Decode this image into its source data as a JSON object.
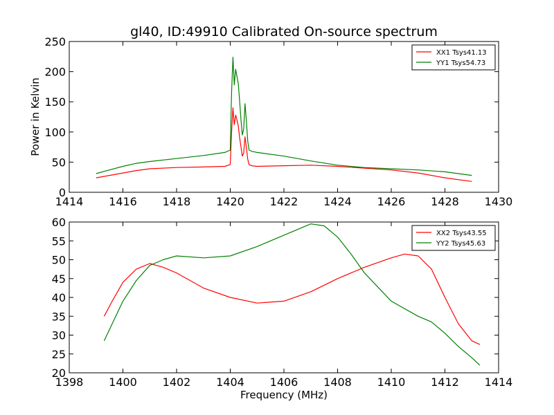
{
  "chart_data": [
    {
      "type": "line",
      "title": "gl40, ID:49910 Calibrated On-source spectrum",
      "xlabel": "",
      "ylabel": "Power in Kelvin",
      "xlim": [
        1414,
        1430
      ],
      "ylim": [
        0,
        250
      ],
      "xticks": [
        1414,
        1416,
        1418,
        1420,
        1422,
        1424,
        1426,
        1428,
        1430
      ],
      "yticks": [
        0,
        50,
        100,
        150,
        200,
        250
      ],
      "legend_position": "top-right",
      "series": [
        {
          "name": "XX1 Tsys41.13",
          "color": "#ff0000",
          "x": [
            1415.0,
            1415.5,
            1416.0,
            1416.5,
            1417.0,
            1418.0,
            1419.0,
            1419.8,
            1420.0,
            1420.05,
            1420.1,
            1420.15,
            1420.2,
            1420.25,
            1420.3,
            1420.35,
            1420.4,
            1420.45,
            1420.5,
            1420.55,
            1420.6,
            1420.65,
            1420.7,
            1420.8,
            1421.0,
            1422.0,
            1423.0,
            1424.0,
            1425.0,
            1426.0,
            1427.0,
            1428.0,
            1429.0
          ],
          "y": [
            24,
            28,
            32,
            36,
            39,
            41,
            42,
            43,
            46,
            100,
            140,
            112,
            128,
            120,
            110,
            90,
            75,
            60,
            65,
            92,
            75,
            55,
            46,
            44,
            43,
            44,
            45,
            43,
            40,
            37,
            32,
            24,
            18
          ]
        },
        {
          "name": "YY1 Tsys54.73",
          "color": "#008000",
          "x": [
            1415.0,
            1415.5,
            1416.0,
            1416.5,
            1417.0,
            1418.0,
            1419.0,
            1419.8,
            1420.0,
            1420.05,
            1420.1,
            1420.15,
            1420.2,
            1420.25,
            1420.3,
            1420.35,
            1420.4,
            1420.45,
            1420.5,
            1420.55,
            1420.6,
            1420.65,
            1420.7,
            1420.8,
            1421.0,
            1422.0,
            1423.0,
            1424.0,
            1425.0,
            1426.0,
            1427.0,
            1428.0,
            1429.0
          ],
          "y": [
            31,
            37,
            43,
            48,
            51,
            56,
            61,
            66,
            70,
            165,
            224,
            178,
            204,
            192,
            180,
            150,
            120,
            95,
            105,
            147,
            120,
            85,
            70,
            68,
            66,
            60,
            52,
            45,
            41,
            39,
            37,
            34,
            28
          ]
        }
      ]
    },
    {
      "type": "line",
      "title": "",
      "xlabel": "Frequency (MHz)",
      "ylabel": "",
      "xlim": [
        1398,
        1414
      ],
      "ylim": [
        20,
        60
      ],
      "xticks": [
        1398,
        1400,
        1402,
        1404,
        1406,
        1408,
        1410,
        1412,
        1414
      ],
      "yticks": [
        20,
        25,
        30,
        35,
        40,
        45,
        50,
        55,
        60
      ],
      "legend_position": "top-right",
      "series": [
        {
          "name": "XX2 Tsys43.55",
          "color": "#ff0000",
          "x": [
            1399.3,
            1399.6,
            1400.0,
            1400.5,
            1401.0,
            1401.5,
            1402.0,
            1403.0,
            1404.0,
            1405.0,
            1406.0,
            1407.0,
            1408.0,
            1409.0,
            1410.0,
            1410.5,
            1411.0,
            1411.5,
            1412.0,
            1412.5,
            1413.0,
            1413.3
          ],
          "y": [
            35,
            39,
            44,
            47.5,
            49,
            48,
            46.5,
            42.5,
            40,
            38.5,
            39,
            41.5,
            45,
            48,
            50.5,
            51.5,
            51,
            47.5,
            40,
            33,
            28.5,
            27.5
          ]
        },
        {
          "name": "YY2 Tsys45.63",
          "color": "#008000",
          "x": [
            1399.3,
            1399.6,
            1400.0,
            1400.5,
            1401.0,
            1401.5,
            1402.0,
            1403.0,
            1404.0,
            1405.0,
            1406.0,
            1407.0,
            1407.5,
            1408.0,
            1408.5,
            1409.0,
            1410.0,
            1411.0,
            1411.5,
            1412.0,
            1412.5,
            1413.0,
            1413.3
          ],
          "y": [
            28.5,
            33,
            39,
            44.5,
            48.5,
            50,
            51,
            50.5,
            51,
            53.5,
            56.5,
            59.5,
            59,
            56,
            51.5,
            46.5,
            39,
            35,
            33.5,
            30.5,
            27,
            24,
            22
          ]
        }
      ]
    }
  ]
}
